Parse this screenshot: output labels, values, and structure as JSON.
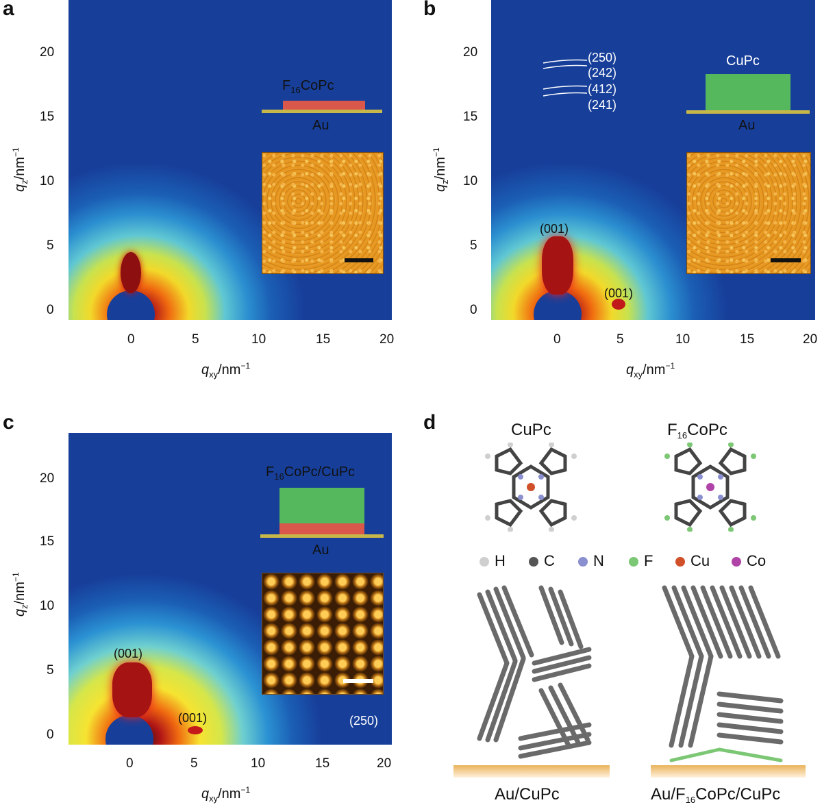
{
  "panels": {
    "a": {
      "letter": "a",
      "film_label_main": "CoPc",
      "film_label_prefix": "F",
      "film_label_sub": "16",
      "substrate": "Au"
    },
    "b": {
      "letter": "b",
      "film_label": "CuPc",
      "substrate": "Au",
      "peaks": [
        "(250)",
        "(242)",
        "(412)",
        "(241)"
      ],
      "peak_001_top": "(001)",
      "peak_001_side": "(001)"
    },
    "c": {
      "letter": "c",
      "film_label_prefix": "F",
      "film_label_sub": "16",
      "film_label_main": "CoPc/CuPc",
      "substrate": "Au",
      "peak_001_top": "(001)",
      "peak_001_side": "(001)",
      "peak_250": "(250)"
    },
    "d": {
      "letter": "d",
      "mol1": "CuPc",
      "mol2_prefix": "F",
      "mol2_sub": "16",
      "mol2_main": "CoPc",
      "bottom1": "Au/CuPc",
      "bottom2_prefix": "Au/F",
      "bottom2_sub": "16",
      "bottom2_main": "CoPc/CuPc",
      "legend": [
        {
          "label": "H",
          "color": "#cfcfcf"
        },
        {
          "label": "C",
          "color": "#555555"
        },
        {
          "label": "N",
          "color": "#8a8fcf"
        },
        {
          "label": "F",
          "color": "#7cc774"
        },
        {
          "label": "Cu",
          "color": "#d0502a"
        },
        {
          "label": "Co",
          "color": "#b043a8"
        }
      ]
    }
  },
  "axes": {
    "x_ticks": [
      "0",
      "5",
      "10",
      "15",
      "20"
    ],
    "y_ticks": [
      "0",
      "5",
      "10",
      "15",
      "20"
    ],
    "x_title_main": "q",
    "x_title_sub": "xy",
    "x_title_unit": "/nm",
    "x_title_sup": "−1",
    "y_title_main": "q",
    "y_title_sub": "z",
    "y_title_unit": "/nm",
    "y_title_sup": "−1"
  },
  "colors": {
    "au": "#c8b84a",
    "f16copc": "#d9574b",
    "cupc": "#55b85c"
  }
}
